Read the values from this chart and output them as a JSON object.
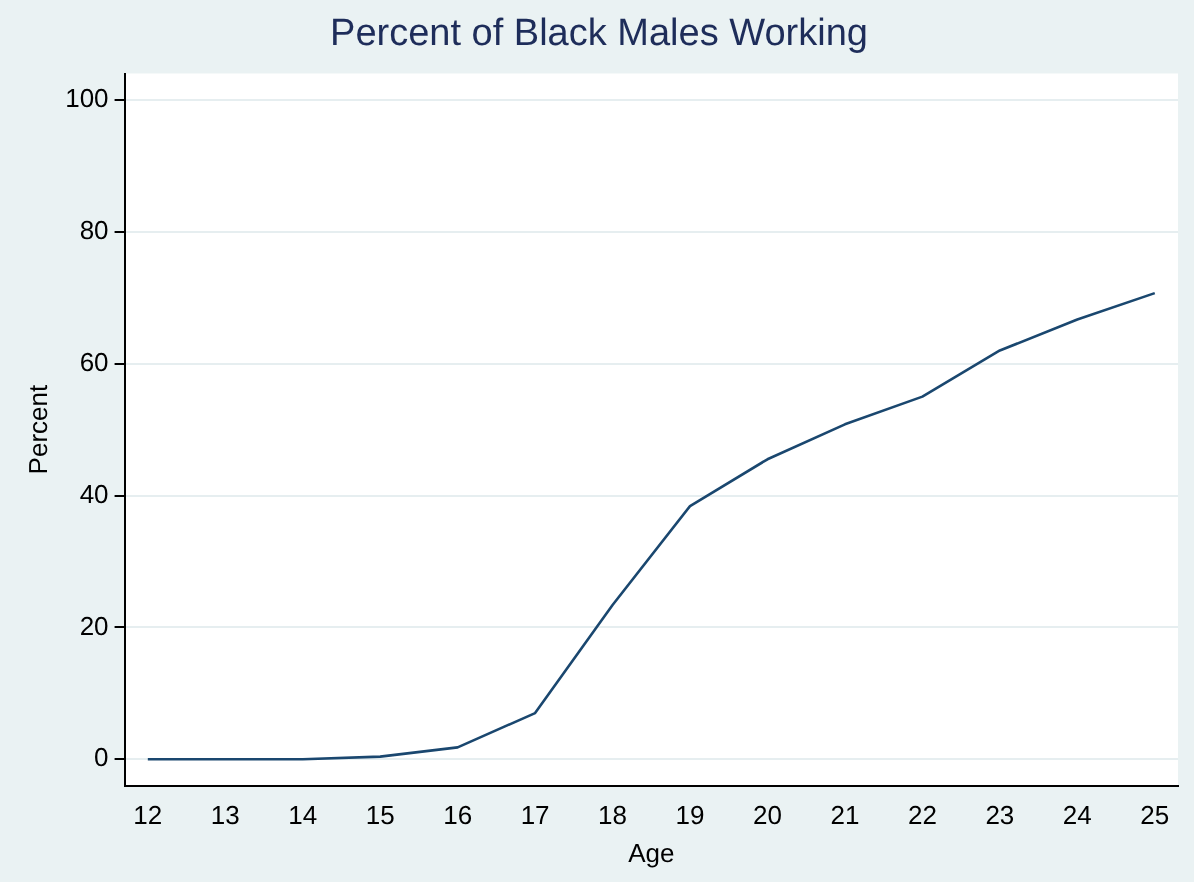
{
  "chart_data": {
    "type": "line",
    "title": "Percent of Black Males Working",
    "xlabel": "Age",
    "ylabel": "Percent",
    "x": [
      12,
      13,
      14,
      15,
      16,
      17,
      18,
      19,
      20,
      21,
      22,
      23,
      24,
      25
    ],
    "series": [
      {
        "color": "#1a476f",
        "values": [
          0,
          0,
          0,
          0.4,
          1.8,
          7.0,
          23.4,
          38.4,
          45.5,
          50.8,
          55.0,
          62.0,
          66.7,
          70.7
        ]
      }
    ],
    "xlim": [
      11.7,
      25.3
    ],
    "xticks": [
      12,
      13,
      14,
      15,
      16,
      17,
      18,
      19,
      20,
      21,
      22,
      23,
      24,
      25
    ],
    "ylim": [
      -4,
      104
    ],
    "yticks": [
      0,
      20,
      40,
      60,
      80,
      100
    ],
    "grid": "y",
    "legend": false,
    "marker": "none",
    "line_style": "solid"
  }
}
